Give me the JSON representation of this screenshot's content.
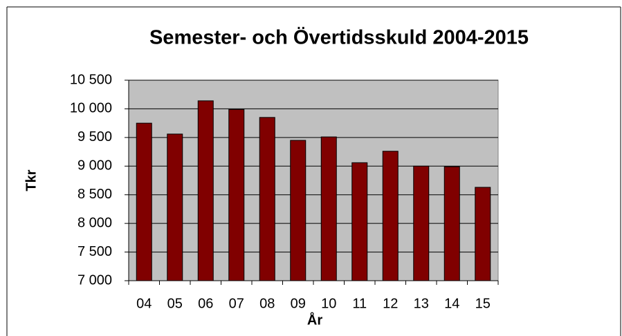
{
  "chart_data": {
    "type": "bar",
    "title": "Semester- och Övertidsskuld 2004-2015",
    "xlabel": "År",
    "ylabel": "Tkr",
    "categories": [
      "04",
      "05",
      "06",
      "07",
      "08",
      "09",
      "10",
      "11",
      "12",
      "13",
      "14",
      "15"
    ],
    "values": [
      9750,
      9560,
      10140,
      9990,
      9850,
      9450,
      9510,
      9060,
      9260,
      9000,
      8990,
      8630
    ],
    "color": "#800000",
    "ylim": [
      7000,
      10500
    ],
    "yticks": [
      {
        "value": 7000,
        "label": "7 000"
      },
      {
        "value": 7500,
        "label": "7 500"
      },
      {
        "value": 8000,
        "label": "8 000"
      },
      {
        "value": 8500,
        "label": "8 500"
      },
      {
        "value": 9000,
        "label": "9 000"
      },
      {
        "value": 9500,
        "label": "9 500"
      },
      {
        "value": 10000,
        "label": "10 000"
      },
      {
        "value": 10500,
        "label": "10 500"
      }
    ],
    "grid": true
  }
}
